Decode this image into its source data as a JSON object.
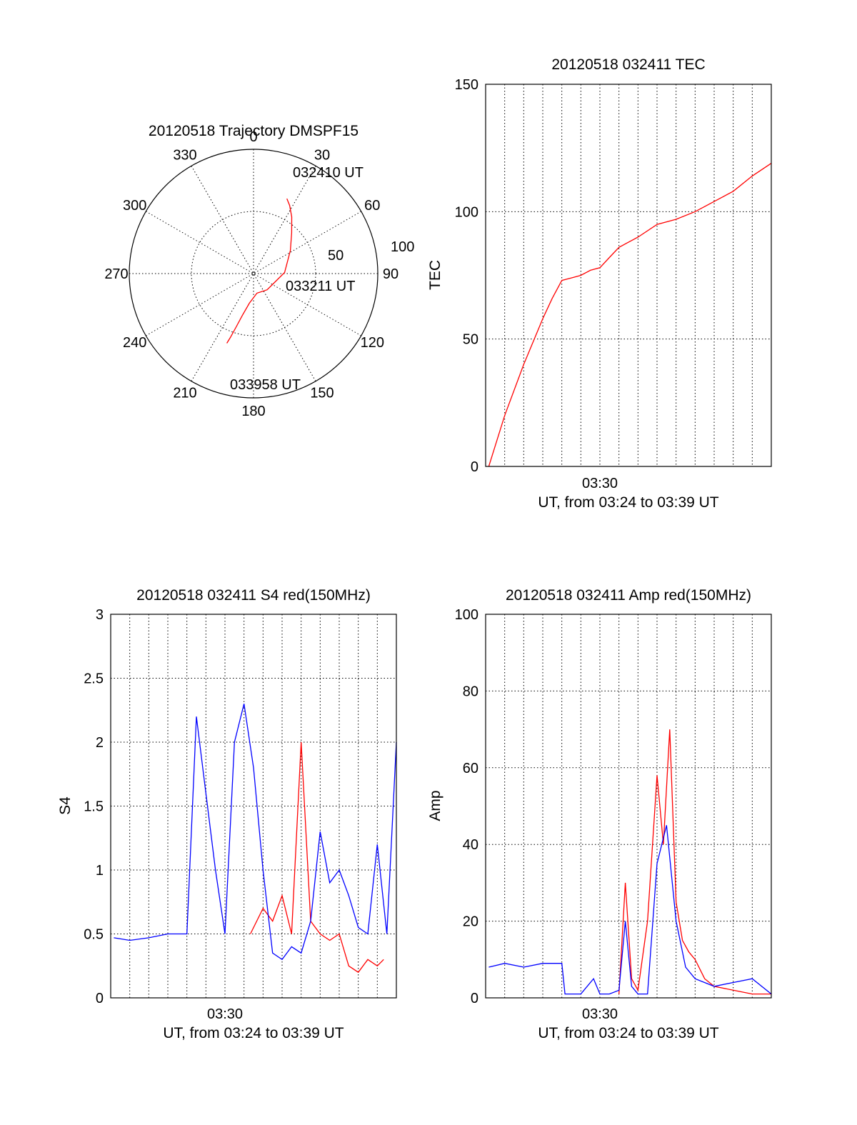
{
  "chart_data": [
    {
      "type": "polar",
      "title": "20120518 Trajectory DMSPF15",
      "angle_labels": [
        "0",
        "30",
        "60",
        "90",
        "120",
        "150",
        "180",
        "210",
        "240",
        "270",
        "300",
        "330"
      ],
      "radius_labels": [
        "50",
        "100"
      ],
      "rlim": [
        0,
        100
      ],
      "grid": true,
      "annotations": [
        "032410 UT",
        "033211 UT",
        "033958 UT"
      ],
      "trajectory": {
        "color": "#ff0000",
        "r": [
          66,
          62,
          55,
          45,
          35,
          25,
          17,
          16,
          24,
          35,
          45,
          55,
          60
        ],
        "theta": [
          24,
          28,
          34,
          43,
          58,
          88,
          140,
          170,
          188,
          195,
          198,
          200,
          201
        ]
      }
    },
    {
      "type": "line",
      "title": "20120518 032411 TEC",
      "ylabel": "TEC",
      "xlabel": "UT, from 03:24 to 03:39 UT",
      "xtick_labels": [
        "03:30"
      ],
      "xlim": [
        "03:24",
        "03:39"
      ],
      "ylim": [
        0,
        150
      ],
      "yticks": [
        "0",
        "50",
        "100",
        "150"
      ],
      "grid": true,
      "series": [
        {
          "color": "#ff0000",
          "x": [
            "03:24:10",
            "03:25:00",
            "03:26:00",
            "03:27:00",
            "03:27:30",
            "03:28:00",
            "03:28:30",
            "03:29:00",
            "03:29:30",
            "03:30:00",
            "03:30:30",
            "03:31:00",
            "03:31:30",
            "03:32:00",
            "03:33:00",
            "03:34:00",
            "03:35:00",
            "03:36:00",
            "03:37:00",
            "03:38:00",
            "03:39:00"
          ],
          "y": [
            0,
            20,
            40,
            58,
            66,
            73,
            74,
            75,
            77,
            78,
            82,
            86,
            88,
            90,
            95,
            97,
            100,
            104,
            108,
            114,
            119
          ]
        }
      ]
    },
    {
      "type": "line",
      "title": "20120518 032411 S4 red(150MHz)",
      "ylabel": "S4",
      "xlabel": "UT, from 03:24 to 03:39 UT",
      "xtick_labels": [
        "03:30"
      ],
      "xlim": [
        "03:24",
        "03:39"
      ],
      "ylim": [
        0,
        3
      ],
      "yticks": [
        "0",
        "0.5",
        "1",
        "1.5",
        "2",
        "2.5",
        "3"
      ],
      "grid": true,
      "series": [
        {
          "color": "#ff0000",
          "x": [
            "03:31:20",
            "03:32:00",
            "03:32:30",
            "03:33:00",
            "03:33:30",
            "03:34:00",
            "03:34:30",
            "03:35:00",
            "03:35:30",
            "03:36:00",
            "03:36:30",
            "03:37:00",
            "03:37:30",
            "03:38:00",
            "03:38:20"
          ],
          "y": [
            0.5,
            0.7,
            0.6,
            0.8,
            0.5,
            2.0,
            0.6,
            0.5,
            0.45,
            0.5,
            0.25,
            0.2,
            0.3,
            0.25,
            0.3
          ]
        },
        {
          "color": "#0000ff",
          "x": [
            "03:24:10",
            "03:25:00",
            "03:26:00",
            "03:27:00",
            "03:28:00",
            "03:28:30",
            "03:29:00",
            "03:29:30",
            "03:30:00",
            "03:30:30",
            "03:31:00",
            "03:31:30",
            "03:32:00",
            "03:32:30",
            "03:33:00",
            "03:33:30",
            "03:34:00",
            "03:34:30",
            "03:35:00",
            "03:35:30",
            "03:36:00",
            "03:36:30",
            "03:37:00",
            "03:37:30",
            "03:38:00",
            "03:38:30",
            "03:39:00"
          ],
          "y": [
            0.47,
            0.45,
            0.47,
            0.5,
            0.5,
            2.2,
            1.6,
            1.0,
            0.5,
            2.0,
            2.3,
            1.8,
            1.0,
            0.35,
            0.3,
            0.4,
            0.35,
            0.6,
            1.3,
            0.9,
            1.0,
            0.8,
            0.55,
            0.5,
            1.2,
            0.5,
            2.0
          ]
        }
      ]
    },
    {
      "type": "line",
      "title": "20120518 032411 Amp red(150MHz)",
      "ylabel": "Amp",
      "xlabel": "UT, from 03:24 to 03:39 UT",
      "xtick_labels": [
        "03:30"
      ],
      "xlim": [
        "03:24",
        "03:39"
      ],
      "ylim": [
        0,
        100
      ],
      "yticks": [
        "0",
        "20",
        "40",
        "60",
        "80",
        "100"
      ],
      "grid": true,
      "series": [
        {
          "color": "#ff0000",
          "x": [
            "03:31:00",
            "03:31:20",
            "03:31:40",
            "03:32:00",
            "03:32:30",
            "03:33:00",
            "03:33:20",
            "03:33:40",
            "03:34:00",
            "03:34:20",
            "03:34:40",
            "03:35:00",
            "03:35:30",
            "03:36:00",
            "03:37:00",
            "03:38:00",
            "03:39:00"
          ],
          "y": [
            1,
            30,
            5,
            2,
            20,
            58,
            40,
            70,
            25,
            15,
            12,
            10,
            5,
            3,
            2,
            1,
            1
          ]
        },
        {
          "color": "#0000ff",
          "x": [
            "03:24:10",
            "03:25:00",
            "03:26:00",
            "03:27:00",
            "03:28:00",
            "03:28:10",
            "03:29:00",
            "03:29:40",
            "03:30:00",
            "03:30:30",
            "03:31:00",
            "03:31:20",
            "03:31:40",
            "03:32:00",
            "03:32:30",
            "03:33:00",
            "03:33:30",
            "03:34:00",
            "03:34:30",
            "03:35:00",
            "03:36:00",
            "03:37:00",
            "03:38:00",
            "03:39:00"
          ],
          "y": [
            8,
            9,
            8,
            9,
            9,
            1,
            1,
            5,
            1,
            1,
            2,
            20,
            3,
            1,
            1,
            35,
            45,
            20,
            8,
            5,
            3,
            4,
            5,
            1
          ]
        }
      ]
    }
  ]
}
